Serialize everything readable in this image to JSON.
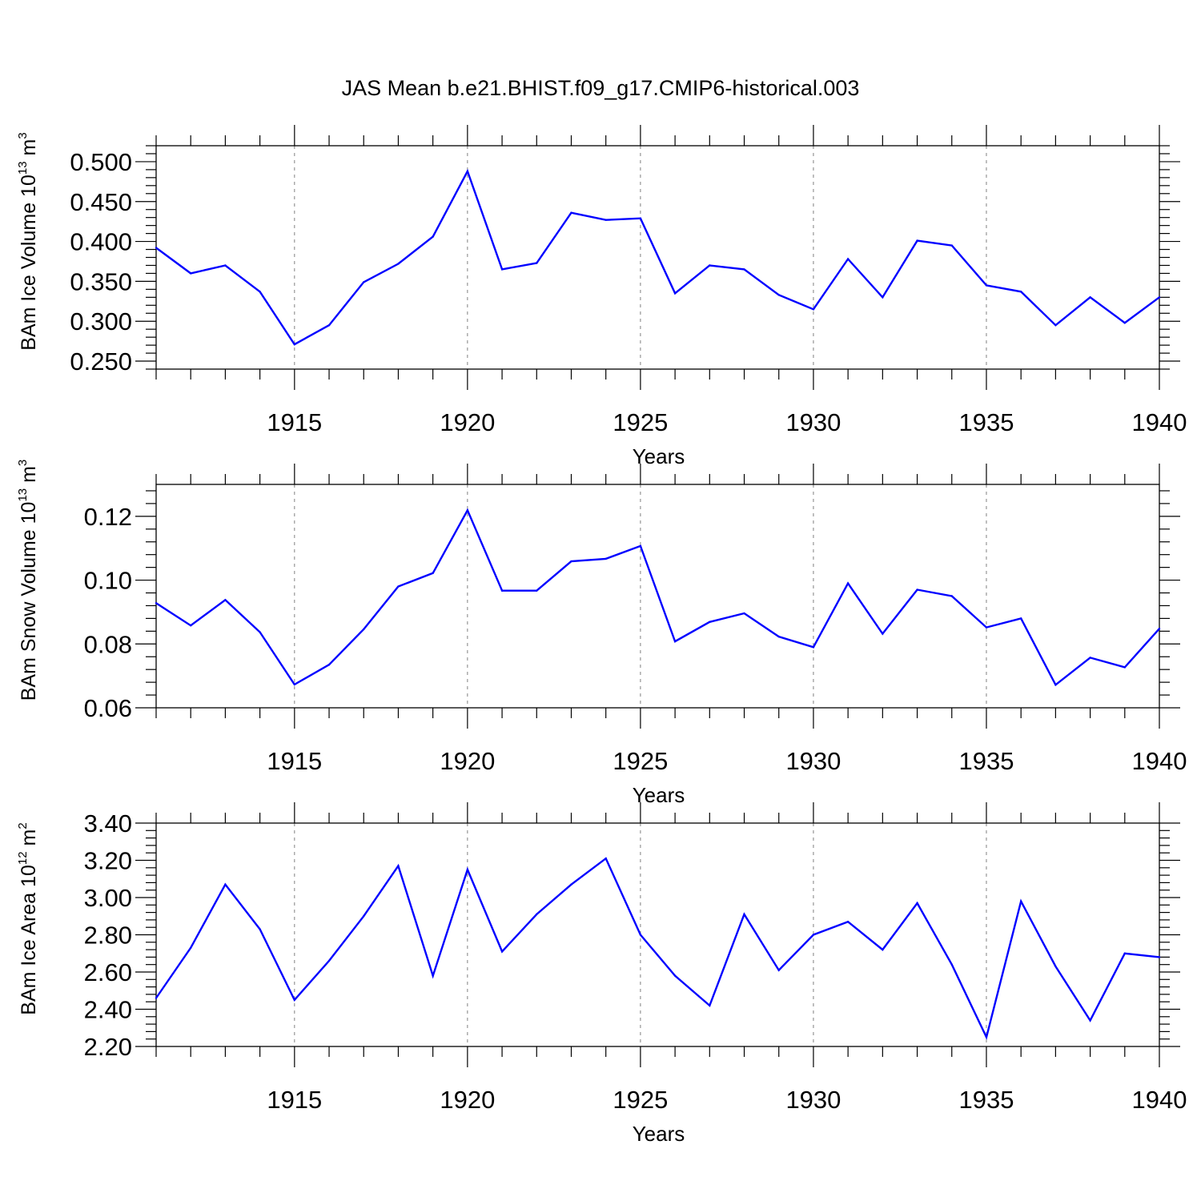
{
  "title": "JAS Mean b.e21.BHIST.f09_g17.CMIP6-historical.003",
  "colors": {
    "line": "#0000ff",
    "axis": "#000000",
    "grid": "#808080"
  },
  "chart_data": [
    {
      "type": "line",
      "ylabel": {
        "prefix": "BAm Ice Volume 10",
        "exponent": "13",
        "unit": " m",
        "unit_exponent": "3"
      },
      "xlabel": "Years",
      "xlim": [
        1911,
        1940
      ],
      "ylim": [
        0.24,
        0.52
      ],
      "yticks": [
        0.25,
        0.3,
        0.35,
        0.4,
        0.45,
        0.5
      ],
      "ytick_labels": [
        "0.250",
        "0.300",
        "0.350",
        "0.400",
        "0.450",
        "0.500"
      ],
      "xticks": [
        1915,
        1920,
        1925,
        1930,
        1935,
        1940
      ],
      "xtick_labels": [
        "1915",
        "1920",
        "1925",
        "1930",
        "1935",
        "1940"
      ],
      "grid": "vertical dashed at major x ticks",
      "series": [
        {
          "name": "BAm Ice Volume",
          "x": [
            1911,
            1912,
            1913,
            1914,
            1915,
            1916,
            1917,
            1918,
            1919,
            1920,
            1921,
            1922,
            1923,
            1924,
            1925,
            1926,
            1927,
            1928,
            1929,
            1930,
            1931,
            1932,
            1933,
            1934,
            1935,
            1936,
            1937,
            1938,
            1939,
            1940
          ],
          "values": [
            0.392,
            0.36,
            0.37,
            0.337,
            0.271,
            0.295,
            0.349,
            0.372,
            0.406,
            0.488,
            0.365,
            0.373,
            0.436,
            0.427,
            0.429,
            0.335,
            0.37,
            0.365,
            0.333,
            0.315,
            0.378,
            0.33,
            0.401,
            0.395,
            0.345,
            0.337,
            0.295,
            0.33,
            0.298,
            0.33
          ]
        }
      ]
    },
    {
      "type": "line",
      "ylabel": {
        "prefix": "BAm Snow Volume 10",
        "exponent": "13",
        "unit": " m",
        "unit_exponent": "3"
      },
      "xlabel": "Years",
      "xlim": [
        1911,
        1940
      ],
      "ylim": [
        0.06,
        0.13
      ],
      "yticks": [
        0.06,
        0.08,
        0.1,
        0.12
      ],
      "ytick_labels": [
        "0.06",
        "0.08",
        "0.10",
        "0.12"
      ],
      "xticks": [
        1915,
        1920,
        1925,
        1930,
        1935,
        1940
      ],
      "xtick_labels": [
        "1915",
        "1920",
        "1925",
        "1930",
        "1935",
        "1940"
      ],
      "grid": "vertical dashed at major x ticks",
      "series": [
        {
          "name": "BAm Snow Volume",
          "x": [
            1911,
            1912,
            1913,
            1914,
            1915,
            1916,
            1917,
            1918,
            1919,
            1920,
            1921,
            1922,
            1923,
            1924,
            1925,
            1926,
            1927,
            1928,
            1929,
            1930,
            1931,
            1932,
            1933,
            1934,
            1935,
            1936,
            1937,
            1938,
            1939,
            1940
          ],
          "values": [
            0.0928,
            0.0858,
            0.0938,
            0.0837,
            0.0673,
            0.0735,
            0.0846,
            0.098,
            0.1022,
            0.1219,
            0.0967,
            0.0967,
            0.1059,
            0.1067,
            0.1107,
            0.0808,
            0.0869,
            0.0896,
            0.0823,
            0.079,
            0.099,
            0.0832,
            0.097,
            0.095,
            0.0852,
            0.088,
            0.0672,
            0.0757,
            0.0727,
            0.0848
          ]
        }
      ]
    },
    {
      "type": "line",
      "ylabel": {
        "prefix": "BAm Ice Area 10",
        "exponent": "12",
        "unit": " m",
        "unit_exponent": "2"
      },
      "xlabel": "Years",
      "xlim": [
        1911,
        1940
      ],
      "ylim": [
        2.2,
        3.4
      ],
      "yticks": [
        2.2,
        2.4,
        2.6,
        2.8,
        3.0,
        3.2,
        3.4
      ],
      "ytick_labels": [
        "2.20",
        "2.40",
        "2.60",
        "2.80",
        "3.00",
        "3.20",
        "3.40"
      ],
      "xticks": [
        1915,
        1920,
        1925,
        1930,
        1935,
        1940
      ],
      "xtick_labels": [
        "1915",
        "1920",
        "1925",
        "1930",
        "1935",
        "1940"
      ],
      "grid": "vertical dashed at major x ticks",
      "series": [
        {
          "name": "BAm Ice Area",
          "x": [
            1911,
            1912,
            1913,
            1914,
            1915,
            1916,
            1917,
            1918,
            1919,
            1920,
            1921,
            1922,
            1923,
            1924,
            1925,
            1926,
            1927,
            1928,
            1929,
            1930,
            1931,
            1932,
            1933,
            1934,
            1935,
            1936,
            1937,
            1938,
            1939,
            1940
          ],
          "values": [
            2.46,
            2.73,
            3.07,
            2.83,
            2.45,
            2.66,
            2.9,
            3.17,
            2.58,
            3.15,
            2.71,
            2.91,
            3.07,
            3.21,
            2.8,
            2.58,
            2.42,
            2.91,
            2.61,
            2.8,
            2.87,
            2.72,
            2.97,
            2.64,
            2.25,
            2.98,
            2.63,
            2.34,
            2.7,
            2.68
          ]
        }
      ]
    }
  ]
}
